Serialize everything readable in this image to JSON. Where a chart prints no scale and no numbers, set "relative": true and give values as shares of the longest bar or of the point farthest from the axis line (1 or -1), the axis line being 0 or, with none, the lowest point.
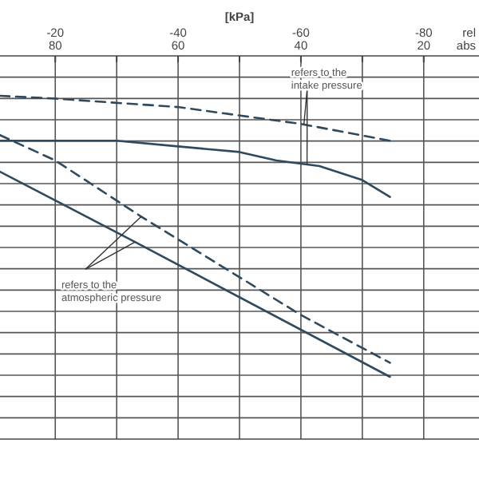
{
  "chart_data": {
    "type": "line",
    "xlabel": "[kPa]",
    "relative": true,
    "xlim": [
      -11,
      -89
    ],
    "xticks": [
      {
        "value": -20,
        "label": "-20"
      },
      {
        "value": -30,
        "label": null
      },
      {
        "value": -40,
        "label": "-40"
      },
      {
        "value": -50,
        "label": null
      },
      {
        "value": -60,
        "label": "-60"
      },
      {
        "value": -70,
        "label": null
      },
      {
        "value": -80,
        "label": "-80"
      }
    ],
    "x2lim": [
      89,
      11
    ],
    "x2ticks": [
      80,
      60,
      40,
      20
    ],
    "grid": true,
    "series": [
      {
        "color": "#2f4a5e",
        "line_style": "dashed",
        "x": [
          -11,
          -20,
          -40,
          -60,
          -74.5
        ],
        "values": [
          1.0,
          0.99,
          0.96,
          0.9,
          0.84
        ]
      },
      {
        "color": "#2f4a5e",
        "line_style": "solid",
        "x": [
          -11,
          -30,
          -40,
          -50,
          -56,
          -63,
          -70,
          -74.5
        ],
        "values": [
          0.84,
          0.84,
          0.82,
          0.8,
          0.77,
          0.75,
          0.7,
          0.64
        ]
      },
      {
        "color": "#2f4a5e",
        "line_style": "dashed",
        "x": [
          -11,
          -20,
          -34,
          -60,
          -74.5
        ],
        "values": [
          0.86,
          0.77,
          0.57,
          0.22,
          0.05
        ]
      },
      {
        "color": "#2f4a5e",
        "line_style": "solid",
        "x": [
          -11,
          -33,
          -74.5
        ],
        "values": [
          0.73,
          0.48,
          0
        ]
      }
    ],
    "annotations": [
      {
        "text": "refers to the intake pressure",
        "x": -60.5,
        "y": 0.9
      },
      {
        "text": "refers to the atmospheric pressure",
        "x": -34,
        "y": 0.57
      },
      "rel",
      "abs"
    ]
  }
}
